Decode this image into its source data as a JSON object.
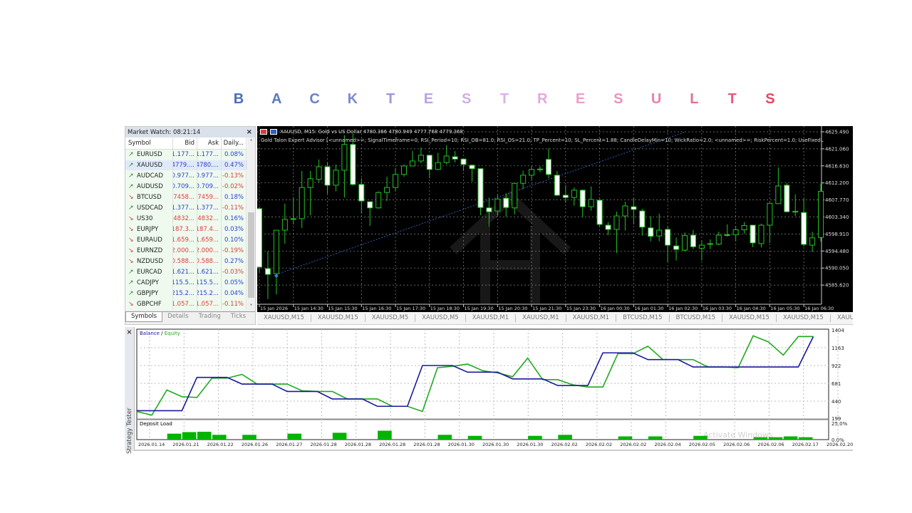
{
  "page_title": "BACKTESTRESULTS",
  "title_colors": [
    "#4a6fb8",
    "#5a78c0",
    "#6a82c8",
    "#7b8bd0",
    "#9c97da",
    "#b8a4e2",
    "#cfaee6",
    "#dcb0e6",
    "#e4a8dc",
    "#eaa0cf",
    "#ec92bd",
    "#ea80a8",
    "#e86e92",
    "#e65a7a",
    "#e4475f"
  ],
  "market_watch": {
    "title": "Market Watch: 08:21:14",
    "close": "×",
    "columns": [
      "Symbol",
      "Bid",
      "Ask",
      "Daily..."
    ],
    "rows": [
      {
        "symbol": "EURUSD",
        "bid": "1.177...",
        "ask": "1.177...",
        "daily": "0.08%",
        "dir": "up"
      },
      {
        "symbol": "XAUUSD",
        "bid": "4779....",
        "ask": "4780....",
        "daily": "0.47%",
        "dir": "up",
        "selected": true
      },
      {
        "symbol": "AUDCAD",
        "bid": "0.977...",
        "ask": "0.977...",
        "daily": "-0.13%",
        "dir": "up"
      },
      {
        "symbol": "AUDUSD",
        "bid": "0.709...",
        "ask": "0.709...",
        "daily": "-0.02%",
        "dir": "up"
      },
      {
        "symbol": "BTCUSD",
        "bid": "7458...",
        "ask": "7459...",
        "daily": "0.18%",
        "dir": "down"
      },
      {
        "symbol": "USDCAD",
        "bid": "1.377...",
        "ask": "1.377...",
        "daily": "-0.11%",
        "dir": "up"
      },
      {
        "symbol": "US30",
        "bid": "4832...",
        "ask": "4832...",
        "daily": "0.16%",
        "dir": "down"
      },
      {
        "symbol": "EURJPY",
        "bid": "187.3...",
        "ask": "187.4...",
        "daily": "0.03%",
        "dir": "down"
      },
      {
        "symbol": "EURAUD",
        "bid": "1.659...",
        "ask": "1.659...",
        "daily": "0.10%",
        "dir": "down"
      },
      {
        "symbol": "EURNZD",
        "bid": "2.000...",
        "ask": "2.000...",
        "daily": "-0.19%",
        "dir": "down"
      },
      {
        "symbol": "NZDUSD",
        "bid": "0.588...",
        "ask": "0.588...",
        "daily": "0.27%",
        "dir": "down"
      },
      {
        "symbol": "EURCAD",
        "bid": "1.621...",
        "ask": "1.621...",
        "daily": "-0.03%",
        "dir": "up"
      },
      {
        "symbol": "CADJPY",
        "bid": "115.5...",
        "ask": "115.5...",
        "daily": "0.05%",
        "dir": "up"
      },
      {
        "symbol": "GBPJPY",
        "bid": "215.2...",
        "ask": "215.2...",
        "daily": "0.04%",
        "dir": "up"
      },
      {
        "symbol": "GBPCHF",
        "bid": "1.057...",
        "ask": "1.057...",
        "daily": "-0.11%",
        "dir": "down"
      }
    ],
    "tabs": [
      "Symbols",
      "Details",
      "Trading",
      "Ticks"
    ],
    "active_tab": "Symbols"
  },
  "chart_window": {
    "header": "XAUUSD, M15:  Gold vs US Dollar  4780.366 4780.949 4777.768 4779.368",
    "ea_line": "Gold Talon Expert Advisor [<unnamed>=; SignalTimeframe=0; RSI_Period=10; RSI_OB=81.0; RSI_OS=21.0; TP_Percent=10; SL_Percent=1.88; CandleDelayMin=10; WickRatio=2.0; <unnamed>=; RiskPercent=1.0; UseFixedLot=false; FixedLotSize=",
    "tabs": [
      "XAUUSD,M15",
      "XAUUSD,M15",
      "XAUUSD,M5",
      "XAUUSD,M5",
      "XAUUSD,M1",
      "XAUUSD,M1",
      "XAUUSD,M1",
      "BTCUSD,M15",
      "BTCUSD,M15",
      "XAUUSD,M15",
      "XAUUSD,M15",
      "XAUUSD,I"
    ],
    "scroll_left": "◂",
    "scroll_right": "▸"
  },
  "chart_data": [
    {
      "type": "candlestick",
      "symbol": "XAUUSD",
      "timeframe": "M15",
      "ylim": [
        4582,
        4627
      ],
      "y_ticks": [
        "4625.490",
        "4621.060",
        "4616.630",
        "4612.200",
        "4607.770",
        "4603.340",
        "4598.910",
        "4594.480",
        "4590.050",
        "4585.620"
      ],
      "x_ticks": [
        "15 Jan 2026",
        "15 Jan 14:30",
        "15 Jan 15:30",
        "15 Jan 16:30",
        "15 Jan 17:30",
        "15 Jan 18:30",
        "15 Jan 19:30",
        "15 Jan 20:30",
        "15 Jan 21:30",
        "15 Jan 23:30",
        "16 Jan 00:30",
        "16 Jan 01:30",
        "16 Jan 02:30",
        "16 Jan 03:30",
        "16 Jan 04:30",
        "16 Jan 05:30",
        "16 Jan 06:30"
      ],
      "grid": true,
      "colors": {
        "background": "#000000",
        "bull": "#000000",
        "bear": "#ffffff",
        "outline": "#22c322",
        "grid": "#8a8a8a",
        "trendline": "#2f5fa8"
      },
      "trendline": {
        "from": [
          2,
          4588.4
        ],
        "to": [
          50,
          4625.4
        ]
      },
      "ohlc": [
        [
          4605.5,
          4606,
          4589,
          4590.3
        ],
        [
          4589.9,
          4594.4,
          4582,
          4588.4
        ],
        [
          4588.6,
          4600,
          4583.2,
          4599.9
        ],
        [
          4599.9,
          4606.8,
          4596.4,
          4602.7
        ],
        [
          4602.7,
          4608.4,
          4601.4,
          4602.9
        ],
        [
          4602.9,
          4615.3,
          4600.5,
          4611
        ],
        [
          4611,
          4615.3,
          4603.8,
          4613.3
        ],
        [
          4613.1,
          4618.3,
          4612.3,
          4616.4
        ],
        [
          4616.4,
          4617.5,
          4609.4,
          4611.6
        ],
        [
          4611.6,
          4617,
          4610,
          4615.5
        ],
        [
          4615.5,
          4624.6,
          4608.4,
          4622.2
        ],
        [
          4622.2,
          4625,
          4611.5,
          4611.8
        ],
        [
          4611.8,
          4613.4,
          4604.2,
          4607.5
        ],
        [
          4607.3,
          4607.4,
          4601,
          4605.7
        ],
        [
          4605.7,
          4610,
          4605.5,
          4609.7
        ],
        [
          4609.7,
          4613.8,
          4607.5,
          4611
        ],
        [
          4611,
          4616.1,
          4610,
          4614.4
        ],
        [
          4614.4,
          4617,
          4613.8,
          4616.6
        ],
        [
          4616.6,
          4620.5,
          4616.6,
          4617.9
        ],
        [
          4617.9,
          4621.4,
          4617.3,
          4619.4
        ],
        [
          4619.4,
          4619.5,
          4613.4,
          4615.7
        ],
        [
          4615.7,
          4620,
          4615.5,
          4617.5
        ],
        [
          4617.5,
          4622,
          4617,
          4619.2
        ],
        [
          4619,
          4620.5,
          4617.5,
          4618.4
        ],
        [
          4618.4,
          4618.5,
          4615.3,
          4617
        ],
        [
          4616.8,
          4617,
          4612.5,
          4615.9
        ],
        [
          4615.9,
          4616,
          4603.8,
          4605.8
        ],
        [
          4605.7,
          4608.4,
          4600.8,
          4604.7
        ],
        [
          4604.9,
          4609.3,
          4603.8,
          4608
        ],
        [
          4608.2,
          4609.5,
          4603.4,
          4605.8
        ],
        [
          4605.7,
          4612.2,
          4604,
          4612.1
        ],
        [
          4612.1,
          4615.4,
          4610.6,
          4614.2
        ],
        [
          4614.2,
          4616.5,
          4613,
          4615.7
        ],
        [
          4615.7,
          4616.5,
          4615,
          4615.8
        ],
        [
          4618.3,
          4621.2,
          4613.4,
          4614.4
        ],
        [
          4614.2,
          4615.3,
          4608.8,
          4609
        ],
        [
          4609,
          4611.6,
          4607,
          4608.4
        ],
        [
          4608.4,
          4611,
          4606.3,
          4610.3
        ],
        [
          4610.3,
          4610.5,
          4603.3,
          4606
        ],
        [
          4606,
          4611.3,
          4605,
          4607.9
        ],
        [
          4607.7,
          4608,
          4600.8,
          4601.4
        ],
        [
          4601.2,
          4602,
          4598.6,
          4600.1
        ],
        [
          4600.1,
          4604.7,
          4594,
          4603.6
        ],
        [
          4603.6,
          4607.3,
          4599.8,
          4606.2
        ],
        [
          4606,
          4608.2,
          4601.4,
          4605.3
        ],
        [
          4604.9,
          4605.5,
          4598.5,
          4600.7
        ],
        [
          4600.5,
          4603.5,
          4597,
          4598.3
        ],
        [
          4598.4,
          4604.2,
          4597,
          4599.9
        ],
        [
          4600.1,
          4601,
          4591.6,
          4596
        ],
        [
          4595.8,
          4598,
          4592,
          4594.9
        ],
        [
          4594.7,
          4599.3,
          4594.4,
          4598.5
        ],
        [
          4598.6,
          4600,
          4595,
          4595.6
        ],
        [
          4595.2,
          4597.2,
          4592,
          4596
        ],
        [
          4596.3,
          4597.5,
          4595,
          4596.4
        ],
        [
          4596.3,
          4599.5,
          4596,
          4598.6
        ],
        [
          4598.6,
          4601.4,
          4598.2,
          4598.7
        ],
        [
          4598.7,
          4601,
          4597,
          4600
        ],
        [
          4600,
          4602,
          4599,
          4601.1
        ],
        [
          4601.2,
          4601.3,
          4595.5,
          4596.6
        ],
        [
          4596.4,
          4601.6,
          4595.4,
          4601.2
        ],
        [
          4601.2,
          4607,
          4596.6,
          4606.9
        ],
        [
          4606.8,
          4616.2,
          4606.7,
          4611.4
        ],
        [
          4611.6,
          4612.2,
          4604.5,
          4604.7
        ],
        [
          4604.7,
          4609.2,
          4603.6,
          4604.8
        ],
        [
          4604.5,
          4608.1,
          4595.7,
          4596.2
        ],
        [
          4596,
          4599.5,
          4594.2,
          4597.9
        ],
        [
          4598,
          4612,
          4597,
          4610
        ]
      ]
    },
    {
      "type": "line",
      "legend": [
        "Balance",
        "Equity"
      ],
      "legend_placement": "top-left",
      "ylim": [
        199,
        1404
      ],
      "y_ticks": [
        "1404",
        "1163",
        "922",
        "681",
        "440",
        "199"
      ],
      "x_ticks": [
        "2026.01.14",
        "2026.01.21",
        "2026.01.22",
        "2026.01.26",
        "2026.01.27",
        "2026.01.28",
        "2026.01.28",
        "2026.01.28",
        "2026.01.28",
        "2026.01.30",
        "2026.01.30",
        "2026.01.30",
        "2026.02.02",
        "2026.02.02",
        "2026.02.02",
        "2026.02.04",
        "2026.02.05",
        "2026.02.06",
        "2026.02.06",
        "2026.02.17",
        "2026.02.20"
      ],
      "grid": true,
      "series": [
        {
          "name": "Balance",
          "color": "#1a1a9a",
          "values": [
            310,
            310,
            310,
            310,
            761,
            761,
            761,
            671,
            671,
            671,
            571,
            571,
            571,
            470,
            470,
            470,
            370,
            370,
            370,
            922,
            922,
            922,
            832,
            832,
            832,
            741,
            741,
            741,
            651,
            651,
            651,
            1093,
            1093,
            1093,
            1002,
            1002,
            1002,
            902,
            902,
            902,
            902,
            902,
            902,
            902,
            902,
            1314
          ]
        },
        {
          "name": "Equity",
          "color": "#1faa1f",
          "values": [
            300,
            250,
            591,
            500,
            490,
            751,
            751,
            802,
            671,
            671,
            671,
            580,
            571,
            571,
            470,
            470,
            470,
            370,
            370,
            300,
            892,
            912,
            942,
            852,
            822,
            771,
            1022,
            731,
            731,
            661,
            631,
            631,
            1083,
            1083,
            1183,
            1002,
            1002,
            1002,
            902,
            902,
            892,
            1324,
            1243,
            1063,
            1314,
            1314
          ]
        }
      ]
    },
    {
      "type": "bar",
      "title": "Deposit Load",
      "ylim": [
        0,
        25
      ],
      "y_ticks": [
        "25.0%",
        "0.0%"
      ],
      "color": "#00b400",
      "values": [
        0,
        0,
        8.7,
        11,
        11.5,
        7,
        0,
        7,
        0,
        0,
        8.7,
        0,
        0,
        10,
        0,
        0,
        13,
        0,
        0,
        0,
        7,
        0,
        5.5,
        0,
        0,
        0,
        5.5,
        0,
        7,
        0,
        0,
        0,
        4.7,
        0,
        4.7,
        0,
        0,
        5.5,
        0,
        0,
        0,
        3.5,
        3.5,
        4.7,
        3.5,
        0
      ]
    }
  ],
  "tester": {
    "close": "×",
    "panel_label": "Strategy Tester",
    "legend_sep": " / "
  },
  "os_watermark": {
    "line1": "Activate Windows",
    "line2": "Go to Settings to activate Windows."
  }
}
